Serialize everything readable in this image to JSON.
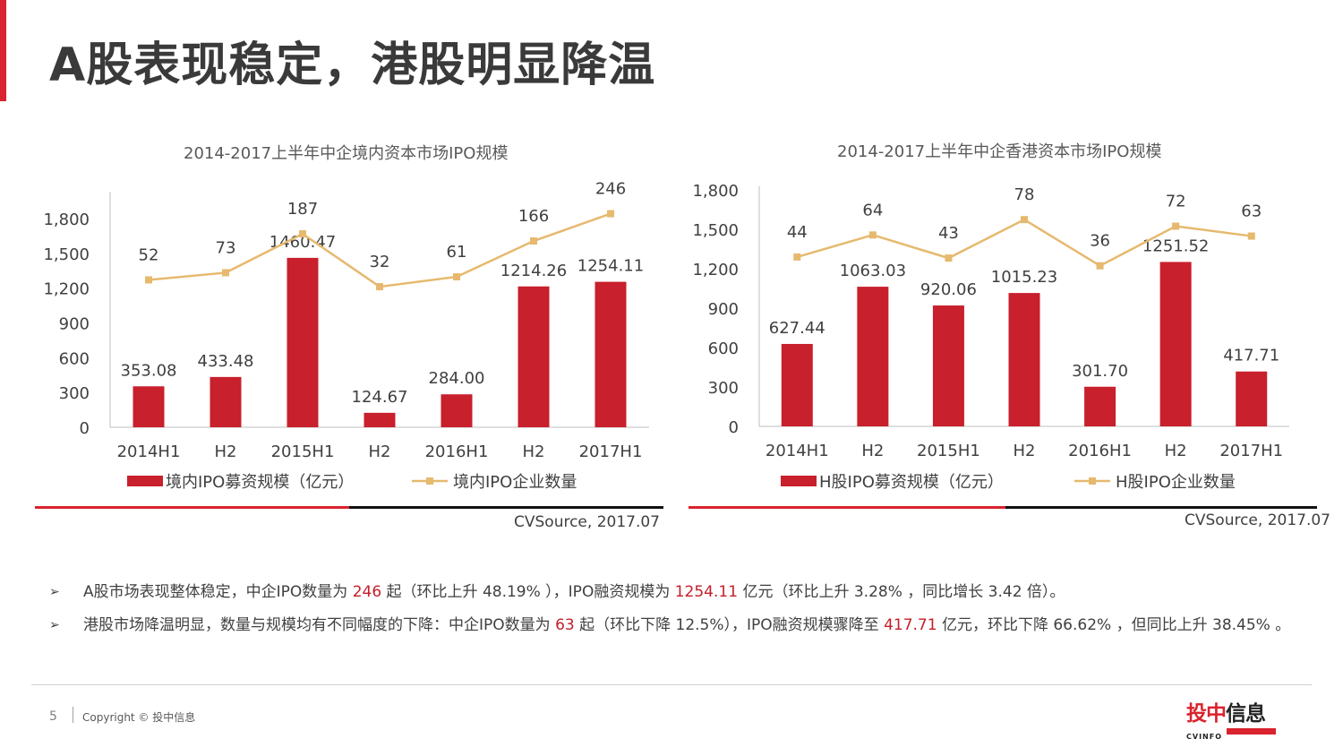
{
  "page": {
    "title": "A股表现稳定，港股明显降温"
  },
  "colors": {
    "bar": "#c8202c",
    "line": "#e6b96e",
    "accent": "#d9232e"
  },
  "chart_data": [
    {
      "type": "bar",
      "title": "2014-2017上半年中企境内资本市场IPO规模",
      "categories": [
        "2014H1",
        "H2",
        "2015H1",
        "H2",
        "2016H1",
        "H2",
        "2017H1"
      ],
      "ylim": [
        0,
        2000
      ],
      "yticks": [
        "0",
        "300",
        "600",
        "900",
        "1,200",
        "1,500",
        "1,800"
      ],
      "ytick_values": [
        0,
        300,
        600,
        900,
        1200,
        1500,
        1800
      ],
      "line_ylim": [
        -380,
        300
      ],
      "series": [
        {
          "name": "境内IPO募资规模（亿元）",
          "type": "bar",
          "values": [
            353.08,
            433.48,
            1460.47,
            124.67,
            284.0,
            1214.26,
            1254.11
          ],
          "labels": [
            "353.08",
            "433.48",
            "1460.47",
            "124.67",
            "284.00",
            "1214.26",
            "1254.11"
          ]
        },
        {
          "name": "境内IPO企业数量",
          "type": "line",
          "values": [
            52,
            73,
            187,
            32,
            61,
            166,
            246
          ],
          "labels": [
            "52",
            "73",
            "187",
            "32",
            "61",
            "166",
            "246"
          ]
        }
      ],
      "source": "CVSource, 2017.07"
    },
    {
      "type": "bar",
      "title": "2014-2017上半年中企香港资本市场IPO规模",
      "categories": [
        "2014H1",
        "H2",
        "2015H1",
        "H2",
        "2016H1",
        "H2",
        "2017H1"
      ],
      "ylim": [
        0,
        1800
      ],
      "yticks": [
        "0",
        "300",
        "600",
        "900",
        "1,200",
        "1,500",
        "1,800"
      ],
      "ytick_values": [
        0,
        300,
        600,
        900,
        1200,
        1500,
        1800
      ],
      "line_ylim": [
        -110,
        105
      ],
      "series": [
        {
          "name": "H股IPO募资规模（亿元）",
          "type": "bar",
          "values": [
            627.44,
            1063.03,
            920.06,
            1015.23,
            301.7,
            1251.52,
            417.71
          ],
          "labels": [
            "627.44",
            "1063.03",
            "920.06",
            "1015.23",
            "301.70",
            "1251.52",
            "417.71"
          ]
        },
        {
          "name": "H股IPO企业数量",
          "type": "line",
          "values": [
            44,
            64,
            43,
            78,
            36,
            72,
            63
          ],
          "labels": [
            "44",
            "64",
            "43",
            "78",
            "36",
            "72",
            "63"
          ]
        }
      ],
      "source": "CVSource, 2017.07"
    }
  ],
  "bullets": [
    {
      "mark": "➢",
      "parts": [
        {
          "t": "A股市场表现整体稳定，中企IPO数量为 ",
          "hl": false
        },
        {
          "t": "246",
          "hl": true
        },
        {
          "t": " 起（环比上升 48.19% ），IPO融资规模为 ",
          "hl": false
        },
        {
          "t": "1254.11",
          "hl": true
        },
        {
          "t": " 亿元（环比上升 3.28% ，同比增长 3.42 倍）。",
          "hl": false
        }
      ]
    },
    {
      "mark": "➢",
      "parts": [
        {
          "t": "港股市场降温明显，数量与规模均有不同幅度的下降：中企IPO数量为 ",
          "hl": false
        },
        {
          "t": "63",
          "hl": true
        },
        {
          "t": " 起（环比下降 12.5%），IPO融资规模骤降至 ",
          "hl": false
        },
        {
          "t": "417.71",
          "hl": true
        },
        {
          "t": " 亿元，环比下降 66.62% ，但同比上升 38.45% 。",
          "hl": false
        }
      ]
    }
  ],
  "footer": {
    "page_number": "5",
    "copyright": "Copyright © 投中信息"
  },
  "logo": {
    "text_cn_1": "投中",
    "text_cn_2": "信息",
    "text_en": "CVINFO"
  }
}
